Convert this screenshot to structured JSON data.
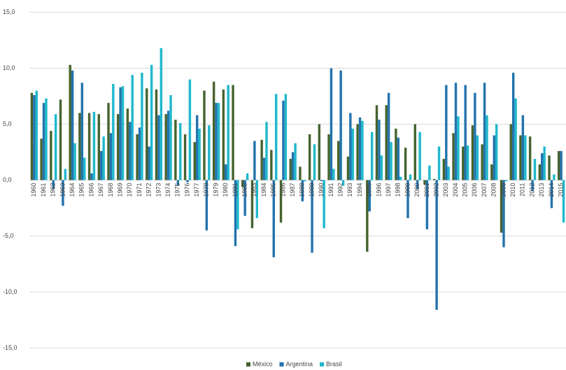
{
  "chart_data": {
    "type": "bar",
    "categories": [
      "1960",
      "1961",
      "1962",
      "1963",
      "1964",
      "1965",
      "1966",
      "1967",
      "1968",
      "1969",
      "1970",
      "1971",
      "1972",
      "1973",
      "1974",
      "1975",
      "1976",
      "1977",
      "1978",
      "1979",
      "1980",
      "1981",
      "1982",
      "1983",
      "1984",
      "1985",
      "1986",
      "1987",
      "1988",
      "1989",
      "1990",
      "1991",
      "1992",
      "1993",
      "1994",
      "1995",
      "1996",
      "1997",
      "1998",
      "1999",
      "2000",
      "2001",
      "2002",
      "2003",
      "2004",
      "2005",
      "2006",
      "2007",
      "2008",
      "2009",
      "2010",
      "2011",
      "2012",
      "2013",
      "2014",
      "2015"
    ],
    "series": [
      {
        "name": "México",
        "color": "#46632f",
        "values": [
          7.8,
          3.7,
          4.4,
          7.2,
          10.3,
          6.0,
          6.0,
          5.9,
          6.9,
          5.9,
          6.4,
          4.1,
          8.2,
          8.1,
          5.9,
          5.4,
          4.1,
          3.4,
          8.0,
          8.8,
          8.1,
          8.5,
          -0.6,
          -4.3,
          3.6,
          2.7,
          -3.8,
          1.9,
          1.2,
          4.1,
          5.0,
          4.1,
          3.5,
          2.1,
          5.0,
          -6.4,
          6.7,
          6.7,
          4.6,
          2.9,
          5.0,
          -0.4,
          0.1,
          1.9,
          4.2,
          3.0,
          4.9,
          3.2,
          1.4,
          -4.7,
          5.0,
          4.0,
          3.9,
          1.4,
          2.2,
          2.6
        ]
      },
      {
        "name": "Argentina",
        "color": "#2273ad",
        "values": [
          7.6,
          6.9,
          -0.8,
          -2.3,
          9.8,
          8.7,
          0.6,
          2.6,
          4.2,
          8.3,
          5.2,
          4.7,
          3.0,
          5.8,
          6.2,
          -0.5,
          -0.2,
          5.8,
          -4.5,
          6.9,
          1.4,
          -5.9,
          -3.2,
          3.5,
          2.0,
          -6.9,
          7.1,
          2.5,
          -1.9,
          -6.5,
          -0.1,
          10.0,
          9.8,
          6.0,
          5.6,
          -2.8,
          5.4,
          7.8,
          3.8,
          -3.4,
          -0.8,
          -4.4,
          -11.6,
          8.5,
          8.7,
          8.5,
          7.8,
          8.7,
          4.0,
          -6.0,
          9.6,
          5.8,
          -1.0,
          2.4,
          -2.5,
          2.6
        ]
      },
      {
        "name": "Brasil",
        "color": "#1fb8cc",
        "values": [
          8.0,
          7.3,
          5.9,
          1.0,
          3.3,
          2.0,
          6.1,
          3.9,
          8.6,
          8.4,
          9.4,
          9.6,
          10.3,
          11.8,
          7.6,
          5.1,
          9.0,
          4.6,
          4.9,
          6.9,
          8.5,
          -4.4,
          0.6,
          -3.4,
          5.2,
          7.7,
          7.7,
          3.3,
          -0.1,
          3.2,
          -4.3,
          1.0,
          -0.5,
          4.6,
          5.3,
          4.3,
          2.2,
          3.4,
          0.3,
          0.5,
          4.3,
          1.3,
          3.0,
          1.2,
          5.7,
          3.1,
          4.0,
          5.8,
          5.0,
          -0.1,
          7.3,
          4.0,
          1.9,
          3.0,
          0.5,
          -3.8
        ]
      }
    ],
    "ylim": [
      -15.6,
      16.1
    ],
    "yticks": [
      {
        "value": -15,
        "label": "-15,0"
      },
      {
        "value": -10,
        "label": "-10,0"
      },
      {
        "value": -5,
        "label": "-5,0"
      },
      {
        "value": 0,
        "label": "0,0"
      },
      {
        "value": 5,
        "label": "5,0"
      },
      {
        "value": 10,
        "label": "10,0"
      },
      {
        "value": 15,
        "label": "15,0"
      }
    ],
    "grid": true,
    "legend": "bottom"
  }
}
